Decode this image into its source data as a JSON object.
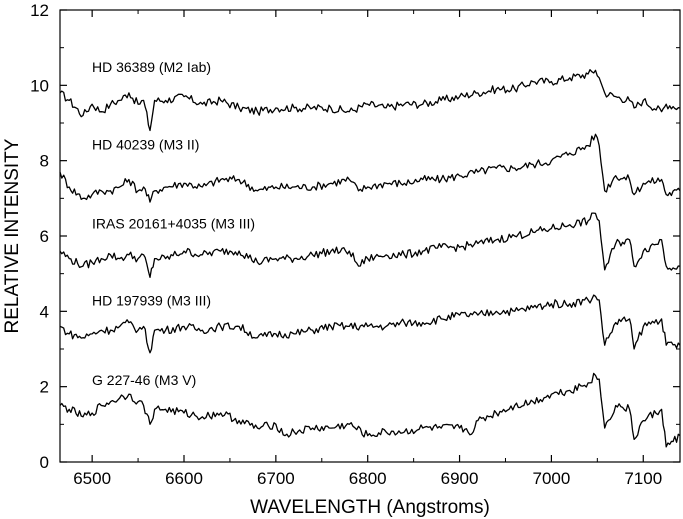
{
  "chart_data": {
    "type": "line",
    "xlabel": "WAVELENGTH (Angstroms)",
    "ylabel": "RELATIVE INTENSITY",
    "xlim": [
      6465,
      7140
    ],
    "ylim": [
      0,
      12
    ],
    "x_ticks": [
      6500,
      6600,
      6700,
      6800,
      6900,
      7000,
      7100
    ],
    "y_ticks": [
      0,
      2,
      4,
      6,
      8,
      10,
      12
    ],
    "grid": false,
    "legend": "none",
    "series": [
      {
        "name": "HD 36389 (M2 Iab)",
        "x": [
          6465,
          6475,
          6490,
          6500,
          6510,
          6520,
          6530,
          6540,
          6550,
          6556,
          6563,
          6568,
          6580,
          6600,
          6620,
          6640,
          6660,
          6680,
          6700,
          6720,
          6740,
          6760,
          6780,
          6800,
          6820,
          6840,
          6860,
          6880,
          6900,
          6920,
          6940,
          6960,
          6980,
          7000,
          7020,
          7040,
          7048,
          7052,
          7058,
          7070,
          7085,
          7090,
          7100,
          7120,
          7125,
          7140
        ],
        "y": [
          9.8,
          9.6,
          9.2,
          9.5,
          9.3,
          9.5,
          9.6,
          9.8,
          9.5,
          9.6,
          8.8,
          9.6,
          9.6,
          9.7,
          9.5,
          9.6,
          9.4,
          9.3,
          9.4,
          9.4,
          9.4,
          9.4,
          9.3,
          9.5,
          9.4,
          9.5,
          9.5,
          9.6,
          9.7,
          9.8,
          9.9,
          9.9,
          10.1,
          10.1,
          10.2,
          10.3,
          10.4,
          10.2,
          9.8,
          9.7,
          9.6,
          9.4,
          9.6,
          9.3,
          9.5,
          9.4
        ]
      },
      {
        "name": "HD 40239 (M3 II)",
        "x": [
          6465,
          6475,
          6490,
          6500,
          6510,
          6520,
          6530,
          6540,
          6550,
          6556,
          6563,
          6568,
          6580,
          6600,
          6620,
          6640,
          6660,
          6680,
          6700,
          6720,
          6740,
          6760,
          6780,
          6790,
          6800,
          6820,
          6840,
          6860,
          6880,
          6900,
          6920,
          6940,
          6960,
          6980,
          7000,
          7020,
          7040,
          7048,
          7052,
          7058,
          7070,
          7085,
          7090,
          7100,
          7120,
          7125,
          7140
        ],
        "y": [
          7.7,
          7.3,
          7.0,
          7.1,
          7.2,
          7.2,
          7.3,
          7.5,
          7.2,
          7.3,
          6.9,
          7.2,
          7.3,
          7.4,
          7.3,
          7.5,
          7.5,
          7.2,
          7.3,
          7.3,
          7.3,
          7.4,
          7.5,
          7.2,
          7.3,
          7.4,
          7.4,
          7.5,
          7.5,
          7.6,
          7.7,
          7.8,
          7.8,
          7.9,
          8.0,
          8.2,
          8.4,
          8.7,
          8.4,
          7.2,
          7.6,
          7.5,
          7.1,
          7.4,
          7.5,
          7.1,
          7.2
        ]
      },
      {
        "name": "IRAS 20161+4035 (M3 III)",
        "x": [
          6465,
          6475,
          6490,
          6500,
          6510,
          6520,
          6530,
          6540,
          6550,
          6556,
          6563,
          6568,
          6580,
          6600,
          6620,
          6640,
          6660,
          6680,
          6700,
          6720,
          6740,
          6760,
          6780,
          6790,
          6800,
          6820,
          6840,
          6860,
          6880,
          6900,
          6920,
          6940,
          6960,
          6980,
          7000,
          7020,
          7040,
          7048,
          7052,
          7058,
          7070,
          7085,
          7090,
          7100,
          7120,
          7125,
          7140
        ],
        "y": [
          5.6,
          5.4,
          5.2,
          5.3,
          5.4,
          5.5,
          5.4,
          5.5,
          5.4,
          5.5,
          4.9,
          5.4,
          5.4,
          5.6,
          5.5,
          5.6,
          5.6,
          5.3,
          5.4,
          5.4,
          5.5,
          5.6,
          5.6,
          5.2,
          5.4,
          5.5,
          5.5,
          5.6,
          5.7,
          5.7,
          5.8,
          5.9,
          6.0,
          6.1,
          6.2,
          6.3,
          6.4,
          6.6,
          6.4,
          5.1,
          5.8,
          5.9,
          5.2,
          5.6,
          5.9,
          5.2,
          5.2
        ]
      },
      {
        "name": "HD 197939 (M3 III)",
        "x": [
          6465,
          6475,
          6490,
          6500,
          6510,
          6520,
          6530,
          6540,
          6550,
          6556,
          6563,
          6568,
          6580,
          6600,
          6620,
          6640,
          6660,
          6680,
          6700,
          6720,
          6740,
          6760,
          6780,
          6800,
          6820,
          6840,
          6860,
          6880,
          6900,
          6920,
          6940,
          6960,
          6980,
          7000,
          7020,
          7040,
          7048,
          7052,
          7058,
          7070,
          7085,
          7090,
          7100,
          7120,
          7125,
          7140
        ],
        "y": [
          3.6,
          3.4,
          3.3,
          3.4,
          3.5,
          3.5,
          3.6,
          3.7,
          3.5,
          3.6,
          2.9,
          3.5,
          3.5,
          3.6,
          3.5,
          3.6,
          3.6,
          3.3,
          3.4,
          3.4,
          3.5,
          3.6,
          3.6,
          3.6,
          3.6,
          3.7,
          3.7,
          3.8,
          3.9,
          3.9,
          4.0,
          4.0,
          4.1,
          4.2,
          4.2,
          4.3,
          4.4,
          4.3,
          3.1,
          3.7,
          3.8,
          3.0,
          3.6,
          3.8,
          3.1,
          3.1
        ]
      },
      {
        "name": "G 227-46 (M3 V)",
        "x": [
          6465,
          6475,
          6490,
          6500,
          6510,
          6520,
          6530,
          6540,
          6550,
          6556,
          6563,
          6568,
          6580,
          6600,
          6620,
          6640,
          6660,
          6680,
          6700,
          6710,
          6720,
          6740,
          6760,
          6780,
          6800,
          6820,
          6840,
          6860,
          6880,
          6900,
          6915,
          6920,
          6940,
          6960,
          6980,
          7000,
          7020,
          7040,
          7048,
          7052,
          7058,
          7070,
          7085,
          7090,
          7100,
          7120,
          7125,
          7140
        ],
        "y": [
          1.5,
          1.4,
          1.2,
          1.3,
          1.5,
          1.6,
          1.7,
          1.8,
          1.6,
          1.5,
          1.0,
          1.4,
          1.4,
          1.3,
          1.2,
          1.3,
          1.1,
          0.9,
          1.0,
          0.7,
          0.8,
          0.9,
          0.9,
          1.0,
          0.7,
          0.8,
          0.8,
          0.9,
          0.9,
          0.9,
          0.8,
          1.1,
          1.3,
          1.5,
          1.6,
          1.8,
          1.9,
          2.1,
          2.3,
          2.2,
          0.9,
          1.5,
          1.4,
          0.6,
          1.1,
          1.4,
          0.4,
          0.7
        ]
      }
    ]
  }
}
